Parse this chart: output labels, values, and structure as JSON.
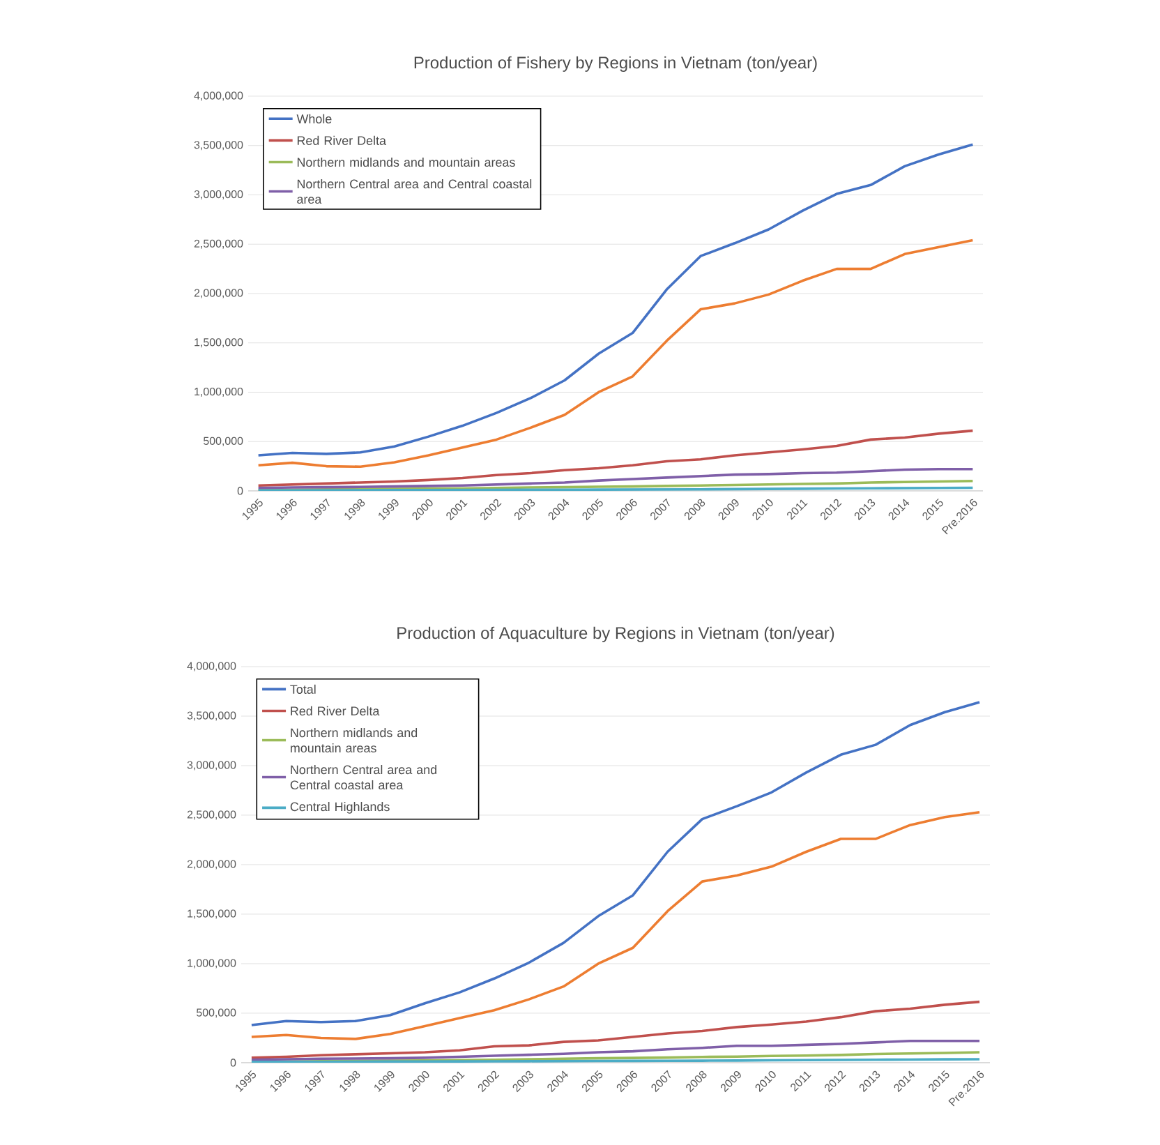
{
  "chart_data": [
    {
      "type": "line",
      "title": "Production of Fishery by Regions in Vietnam (ton/year)",
      "categories": [
        "1995",
        "1996",
        "1997",
        "1998",
        "1999",
        "2000",
        "2001",
        "2002",
        "2003",
        "2004",
        "2005",
        "2006",
        "2007",
        "2008",
        "2009",
        "2010",
        "2011",
        "2012",
        "2013",
        "2014",
        "2015",
        "Pre.2016"
      ],
      "series": [
        {
          "name": "Whole",
          "color": "#4472c4",
          "values": [
            360000,
            385000,
            375000,
            390000,
            450000,
            550000,
            660000,
            790000,
            940000,
            1120000,
            1390000,
            1600000,
            2040000,
            2380000,
            2510000,
            2650000,
            2840000,
            3010000,
            3100000,
            3290000,
            3410000,
            3510000
          ]
        },
        {
          "color": "#ed7d31",
          "values": [
            260000,
            285000,
            250000,
            245000,
            290000,
            360000,
            440000,
            520000,
            640000,
            770000,
            1000000,
            1160000,
            1520000,
            1840000,
            1900000,
            1990000,
            2130000,
            2250000,
            2250000,
            2400000,
            2470000,
            2540000
          ]
        },
        {
          "name": "Red River Delta",
          "color": "#c0504d",
          "values": [
            55000,
            65000,
            75000,
            85000,
            95000,
            110000,
            130000,
            160000,
            180000,
            210000,
            230000,
            260000,
            300000,
            320000,
            360000,
            390000,
            420000,
            455000,
            520000,
            540000,
            580000,
            610000
          ]
        },
        {
          "name": "Northern midlands and mountain areas",
          "color": "#9bbb59",
          "values": [
            10000,
            12000,
            15000,
            18000,
            20000,
            23000,
            25000,
            30000,
            35000,
            38000,
            42000,
            45000,
            50000,
            55000,
            60000,
            65000,
            70000,
            75000,
            85000,
            90000,
            95000,
            100000
          ]
        },
        {
          "name": "Northern Central area and Central coastal area",
          "color": "#7f5fa8",
          "values": [
            30000,
            35000,
            38000,
            40000,
            45000,
            50000,
            55000,
            65000,
            75000,
            85000,
            105000,
            120000,
            135000,
            150000,
            165000,
            170000,
            180000,
            185000,
            200000,
            215000,
            220000,
            220000
          ]
        },
        {
          "color": "#4bacc6",
          "values": [
            5000,
            5000,
            6000,
            7000,
            8000,
            8000,
            9000,
            10000,
            11000,
            12000,
            13000,
            14000,
            15000,
            16000,
            18000,
            20000,
            22000,
            24000,
            26000,
            28000,
            30000,
            32000
          ]
        }
      ],
      "ylim": [
        0,
        4000000
      ],
      "yticks": [
        {
          "value": 0,
          "label": "0"
        },
        {
          "value": 500000,
          "label": "500,000"
        },
        {
          "value": 1000000,
          "label": "1,000,000"
        },
        {
          "value": 1500000,
          "label": "1,500,000"
        },
        {
          "value": 2000000,
          "label": "2,000,000"
        },
        {
          "value": 2500000,
          "label": "2,500,000"
        },
        {
          "value": 3000000,
          "label": "3,000,000"
        },
        {
          "value": 3500000,
          "label": "3,500,000"
        },
        {
          "value": 4000000,
          "label": "4,000,000"
        }
      ],
      "grid": "y",
      "legend": "top left"
    },
    {
      "type": "line",
      "title": "Production of Aquaculture by Regions in Vietnam (ton/year)",
      "categories": [
        "1995",
        "1996",
        "1997",
        "1998",
        "1999",
        "2000",
        "2001",
        "2002",
        "2003",
        "2004",
        "2005",
        "2006",
        "2007",
        "2008",
        "2009",
        "2010",
        "2011",
        "2012",
        "2013",
        "2014",
        "2015",
        "Pre.2016"
      ],
      "series": [
        {
          "name": "Total",
          "color": "#4472c4",
          "values": [
            380000,
            420000,
            410000,
            420000,
            480000,
            600000,
            710000,
            850000,
            1010000,
            1210000,
            1480000,
            1690000,
            2130000,
            2460000,
            2590000,
            2730000,
            2930000,
            3110000,
            3210000,
            3410000,
            3540000,
            3640000
          ]
        },
        {
          "color": "#ed7d31",
          "values": [
            260000,
            280000,
            250000,
            240000,
            290000,
            370000,
            450000,
            530000,
            640000,
            770000,
            1000000,
            1160000,
            1530000,
            1830000,
            1890000,
            1980000,
            2130000,
            2260000,
            2260000,
            2400000,
            2480000,
            2530000
          ]
        },
        {
          "name": "Red River Delta",
          "color": "#c0504d",
          "values": [
            50000,
            60000,
            75000,
            85000,
            95000,
            105000,
            125000,
            165000,
            175000,
            210000,
            225000,
            260000,
            295000,
            320000,
            360000,
            385000,
            415000,
            460000,
            520000,
            545000,
            585000,
            615000
          ]
        },
        {
          "name": "Northern midlands and mountain areas",
          "color": "#9bbb59",
          "values": [
            10000,
            12000,
            15000,
            18000,
            20000,
            23000,
            26000,
            30000,
            35000,
            40000,
            45000,
            48000,
            52000,
            58000,
            62000,
            68000,
            72000,
            78000,
            88000,
            93000,
            98000,
            105000
          ]
        },
        {
          "name": "Northern Central area and Central coastal area",
          "color": "#7f5fa8",
          "values": [
            30000,
            35000,
            40000,
            42000,
            45000,
            50000,
            60000,
            70000,
            80000,
            90000,
            105000,
            115000,
            135000,
            150000,
            170000,
            170000,
            180000,
            190000,
            205000,
            220000,
            220000,
            220000
          ]
        },
        {
          "name": "Central Highlands",
          "color": "#4bacc6",
          "values": [
            8000,
            8000,
            9000,
            10000,
            11000,
            12000,
            13000,
            14000,
            15000,
            16000,
            17000,
            18000,
            19000,
            20000,
            22000,
            24000,
            26000,
            28000,
            30000,
            32000,
            34000,
            35000
          ]
        }
      ],
      "ylim": [
        0,
        4000000
      ],
      "yticks": [
        {
          "value": 0,
          "label": "0"
        },
        {
          "value": 500000,
          "label": "500,000"
        },
        {
          "value": 1000000,
          "label": "1,000,000"
        },
        {
          "value": 1500000,
          "label": "1,500,000"
        },
        {
          "value": 2000000,
          "label": "2,000,000"
        },
        {
          "value": 2500000,
          "label": "2,500,000"
        },
        {
          "value": 3000000,
          "label": "3,000,000"
        },
        {
          "value": 3500000,
          "label": "3,500,000"
        },
        {
          "value": 4000000,
          "label": "4,000,000"
        }
      ],
      "grid": "y",
      "legend": "top left"
    }
  ]
}
